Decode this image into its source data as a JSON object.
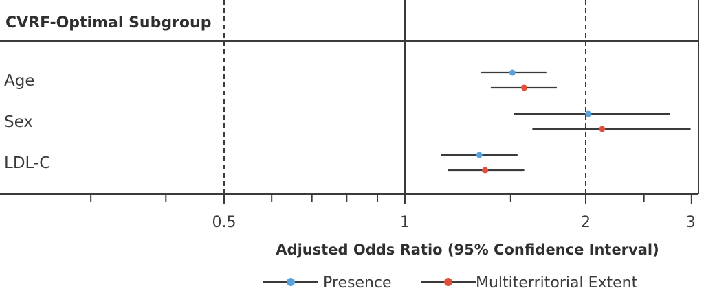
{
  "chart_data": {
    "type": "forest",
    "panel_title": "CVRF-Optimal Subgroup",
    "xlabel": "Adjusted Odds Ratio (95% Confidence Interval)",
    "x_scale": "log",
    "xlim": [
      0.31,
      3
    ],
    "reference_line": 1,
    "dashed_lines": [
      0.5,
      2
    ],
    "x_ticks": [
      0.5,
      1,
      2,
      3
    ],
    "minor_ticks": [
      0.3,
      0.4,
      0.6,
      0.7,
      0.8,
      0.9,
      1.5,
      2.5
    ],
    "rows": [
      "Age",
      "Sex",
      "LDL-C"
    ],
    "series": [
      {
        "name": "Presence",
        "color": "#5aa2dc",
        "points": [
          {
            "row": "Age",
            "or": 1.51,
            "lo": 1.34,
            "hi": 1.72
          },
          {
            "row": "Sex",
            "or": 2.02,
            "lo": 1.52,
            "hi": 2.76
          },
          {
            "row": "LDL-C",
            "or": 1.33,
            "lo": 1.15,
            "hi": 1.54
          }
        ]
      },
      {
        "name": "Multiterritorial Extent",
        "color": "#e04f3a",
        "points": [
          {
            "row": "Age",
            "or": 1.58,
            "lo": 1.39,
            "hi": 1.79
          },
          {
            "row": "Sex",
            "or": 2.13,
            "lo": 1.63,
            "hi": 2.99
          },
          {
            "row": "LDL-C",
            "or": 1.36,
            "lo": 1.18,
            "hi": 1.58
          }
        ]
      }
    ]
  }
}
